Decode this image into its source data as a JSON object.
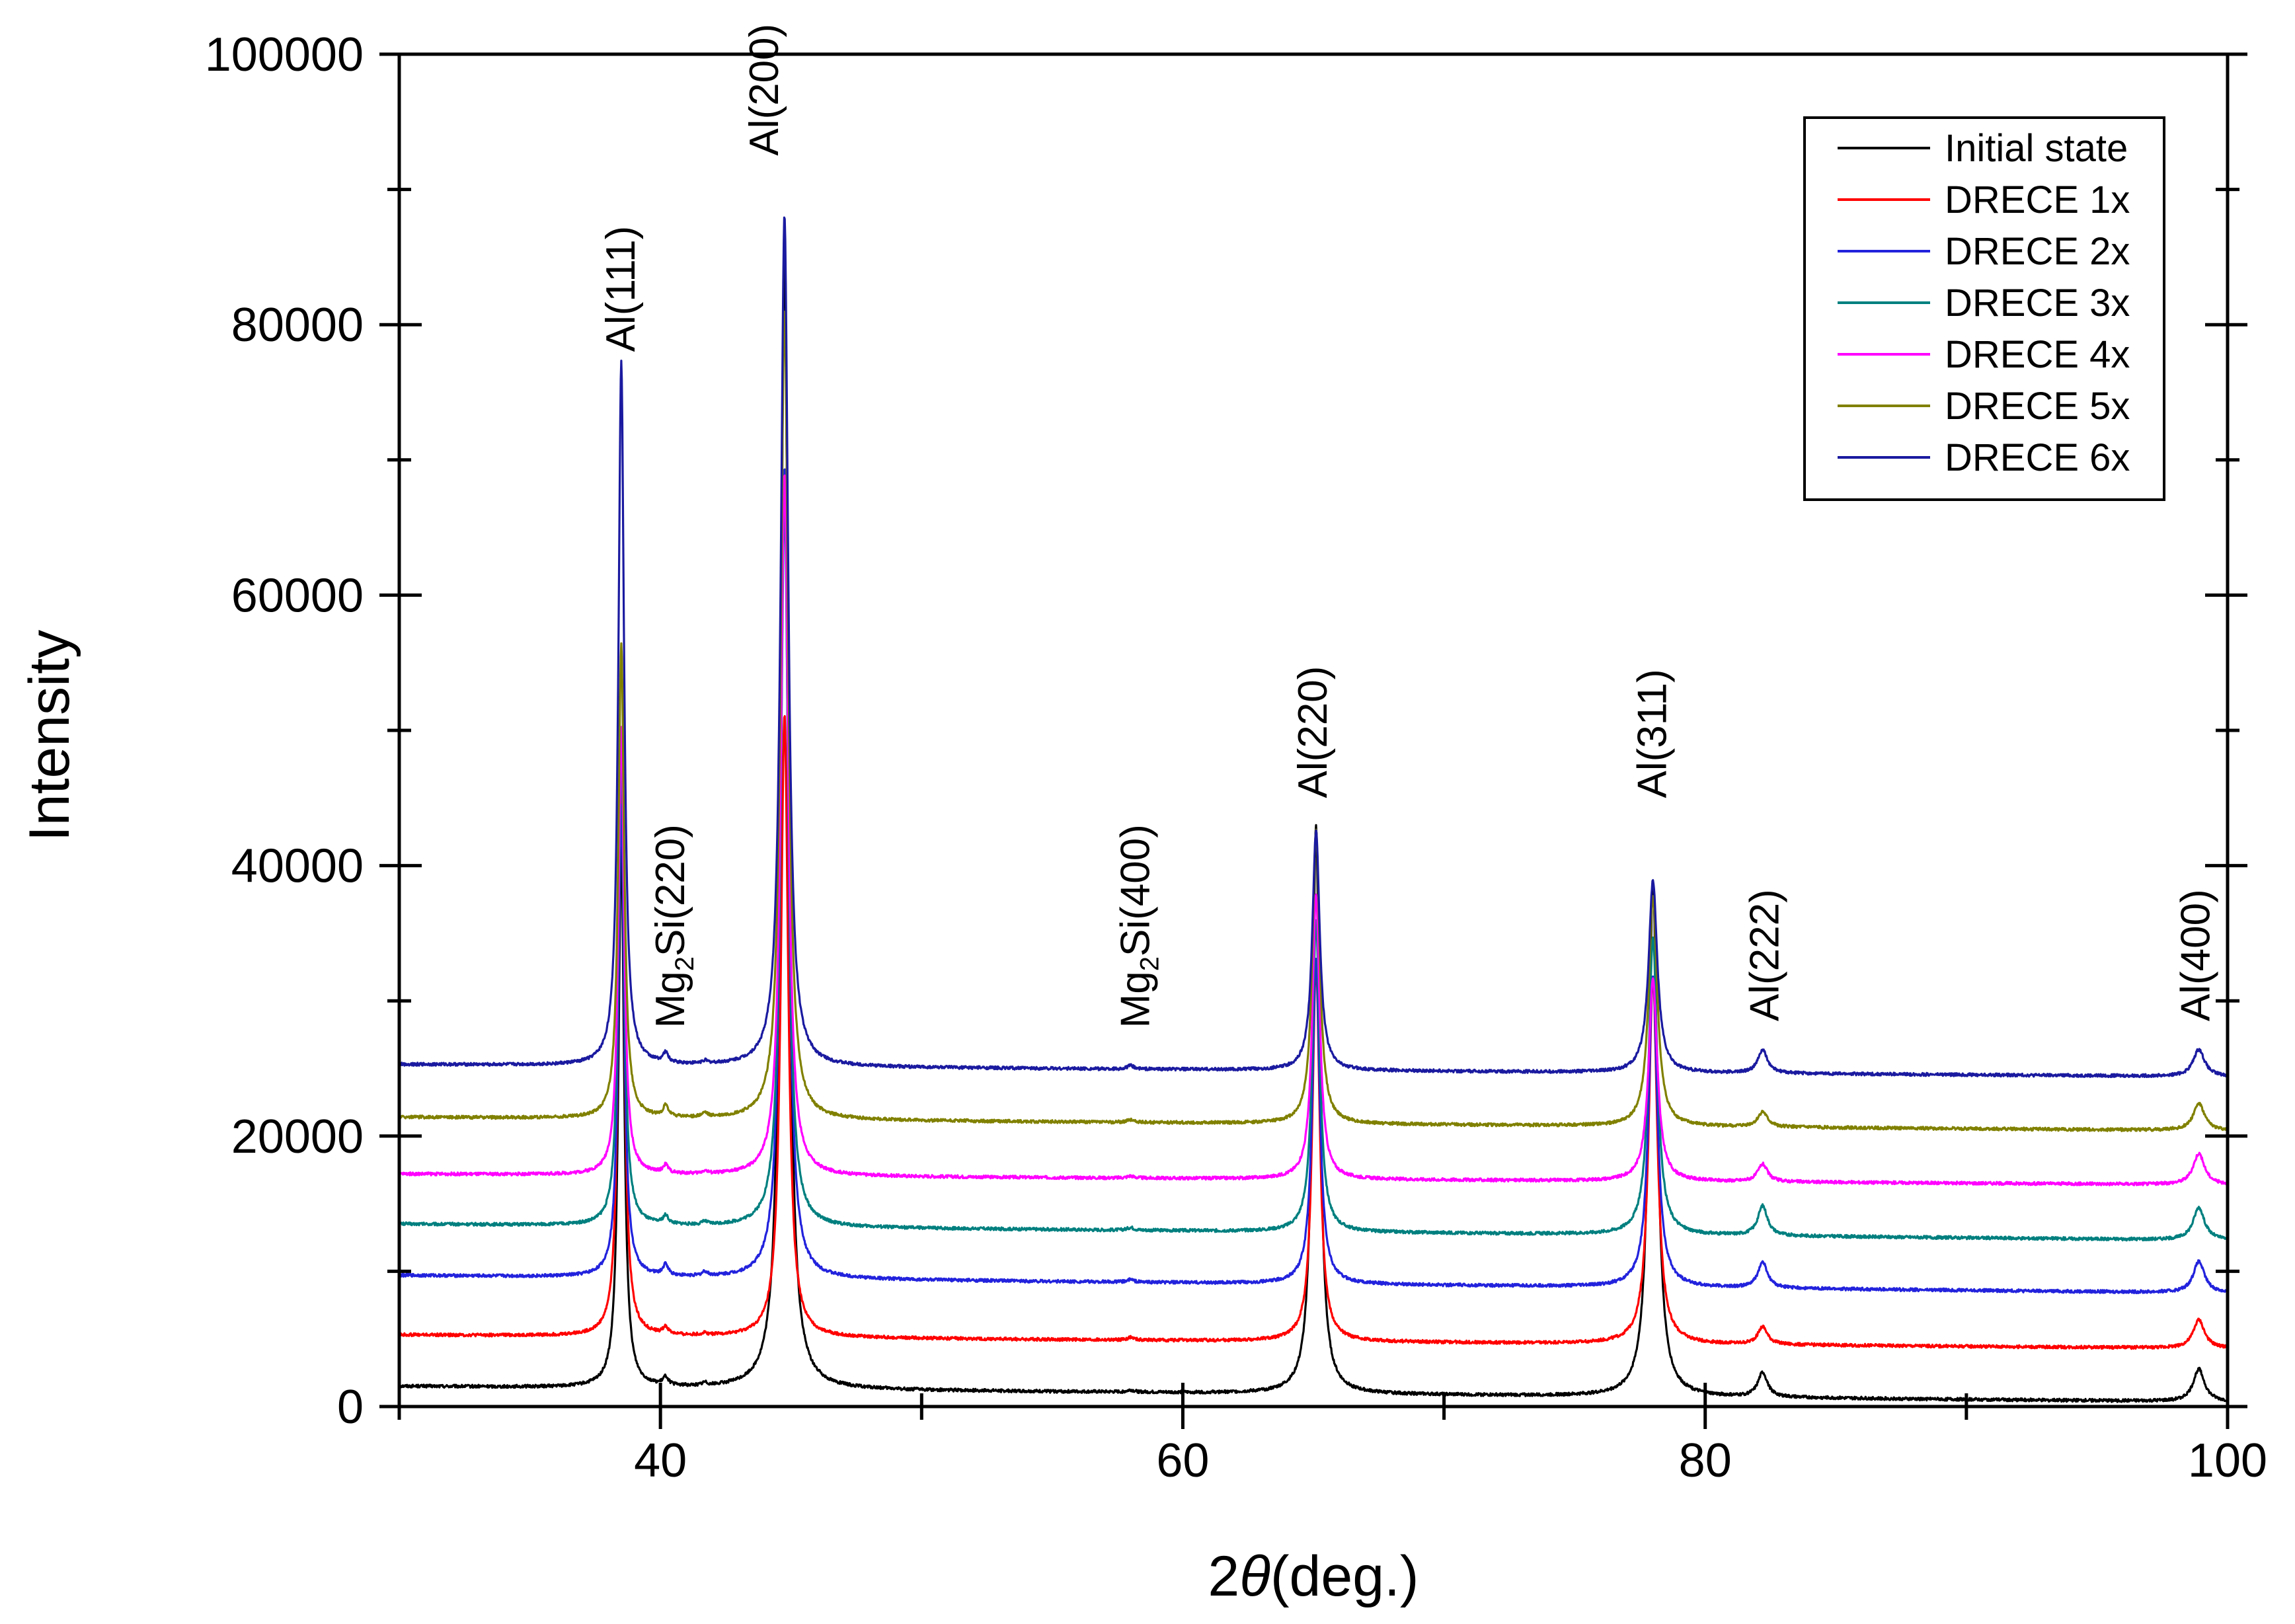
{
  "chart_data": {
    "type": "line",
    "title": "",
    "xlabel": "2θ(deg.)",
    "xlabel_parts": {
      "prefix": "2",
      "symbol": "θ",
      "suffix": "(deg.)"
    },
    "ylabel": "Intensity",
    "xlim": [
      30,
      100
    ],
    "ylim": [
      0,
      100000
    ],
    "x_ticks": [
      40,
      60,
      80,
      100
    ],
    "x_tick_labels": [
      "40",
      "60",
      "80",
      "100"
    ],
    "y_ticks": [
      0,
      20000,
      40000,
      60000,
      80000,
      100000
    ],
    "y_tick_labels": [
      "0",
      "20000",
      "40000",
      "60000",
      "80000",
      "100000"
    ],
    "grid": false,
    "legend": {
      "position": "top-right"
    },
    "peak_positions": [
      38.5,
      40.2,
      41.7,
      44.75,
      58.0,
      65.1,
      78.0,
      82.2,
      98.9
    ],
    "series": [
      {
        "name": "Initial state",
        "color": "#000000",
        "baseline_start": 1500,
        "baseline_end": 350,
        "peaks": [
          40000,
          600,
          200,
          85000,
          150,
          42000,
          38000,
          1800,
          2400
        ]
      },
      {
        "name": "DRECE 1x",
        "color": "#ff0000",
        "baseline_start": 5300,
        "baseline_end": 4300,
        "peaks": [
          43000,
          500,
          150,
          46000,
          200,
          28000,
          27000,
          1300,
          2100
        ]
      },
      {
        "name": "DRECE 2x",
        "color": "#2222dd",
        "baseline_start": 9700,
        "baseline_end": 8400,
        "peaks": [
          35000,
          800,
          300,
          60000,
          200,
          24000,
          23000,
          1900,
          2300
        ]
      },
      {
        "name": "DRECE 3x",
        "color": "#007f7f",
        "baseline_start": 13500,
        "baseline_end": 12300,
        "peaks": [
          35000,
          600,
          200,
          54000,
          200,
          23000,
          22000,
          2200,
          2400
        ]
      },
      {
        "name": "DRECE 4x",
        "color": "#ff00ff",
        "baseline_start": 17200,
        "baseline_end": 16400,
        "peaks": [
          33000,
          600,
          200,
          52000,
          150,
          21000,
          15000,
          1300,
          2300
        ]
      },
      {
        "name": "DRECE 5x",
        "color": "#808000",
        "baseline_start": 21400,
        "baseline_end": 20400,
        "peaks": [
          35000,
          800,
          300,
          60000,
          200,
          21700,
          17000,
          1100,
          2000
        ]
      },
      {
        "name": "DRECE 6x",
        "color": "#1a1aa0",
        "baseline_start": 25300,
        "baseline_end": 24400,
        "peaks": [
          52000,
          700,
          200,
          63000,
          250,
          17700,
          14200,
          1700,
          2000
        ]
      }
    ],
    "annotations": [
      {
        "text": "Al(111)",
        "x": 38.5,
        "y": 77500
      },
      {
        "text": "Al(200)",
        "x": 44.0,
        "y": 92000
      },
      {
        "text": "Al(220)",
        "x": 65.0,
        "y": 44500
      },
      {
        "text": "Al(311)",
        "x": 78.0,
        "y": 44500
      },
      {
        "text": "Al(222)",
        "x": 82.3,
        "y": 28000
      },
      {
        "text": "Al(400)",
        "x": 98.8,
        "y": 28000
      }
    ],
    "annotations_mg2si": [
      {
        "base": "Mg",
        "sub": "2",
        "rest": "Si(220)",
        "x": 40.4,
        "y": 27500
      },
      {
        "base": "Mg",
        "sub": "2",
        "rest": "Si(400)",
        "x": 58.2,
        "y": 27500
      }
    ]
  }
}
